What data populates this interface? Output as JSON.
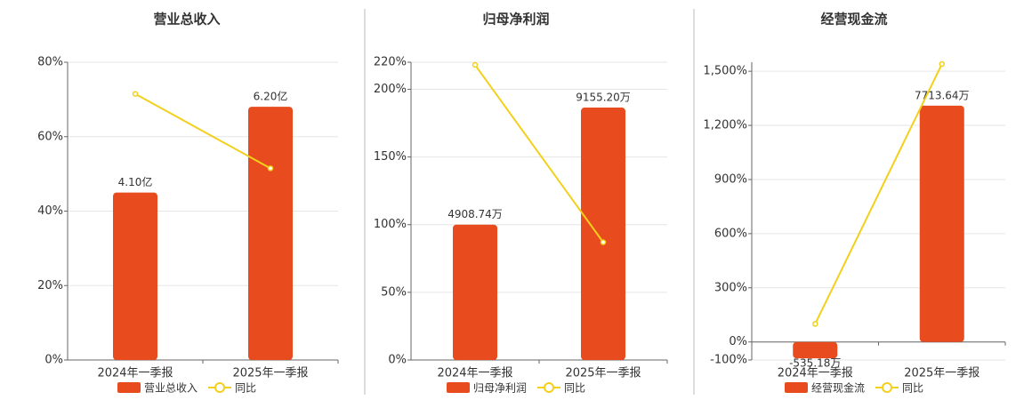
{
  "chart_data": [
    {
      "type": "bar_line",
      "title": "营业总收入",
      "categories": [
        "2024年一季报",
        "2025年一季报"
      ],
      "ylim": [
        0,
        80
      ],
      "yticks": [
        {
          "value": 0,
          "label": "0%"
        },
        {
          "value": 20,
          "label": "20%"
        },
        {
          "value": 40,
          "label": "40%"
        },
        {
          "value": 60,
          "label": "60%"
        },
        {
          "value": 80,
          "label": "80%"
        }
      ],
      "y2lim": [
        0,
        7.29
      ],
      "grid": true,
      "series": [
        {
          "name": "营业总收入",
          "kind": "bar",
          "axis": "y2",
          "color": "#e84c1e",
          "values": [
            4.1,
            6.2
          ],
          "value_labels": [
            "4.10亿",
            "6.20亿"
          ]
        },
        {
          "name": "同比",
          "kind": "line",
          "color": "#f2d01c",
          "values": [
            71.5,
            51.5
          ]
        }
      ]
    },
    {
      "type": "bar_line",
      "title": "归母净利润",
      "categories": [
        "2024年一季报",
        "2025年一季报"
      ],
      "ylim": [
        0,
        220
      ],
      "yticks": [
        {
          "value": 0,
          "label": "0%"
        },
        {
          "value": 50,
          "label": "50%"
        },
        {
          "value": 100,
          "label": "100%"
        },
        {
          "value": 150,
          "label": "150%"
        },
        {
          "value": 200,
          "label": "200%"
        },
        {
          "value": 220,
          "label": "220%"
        }
      ],
      "y2lim": [
        0,
        10800
      ],
      "grid": true,
      "series": [
        {
          "name": "归母净利润",
          "kind": "bar",
          "axis": "y2",
          "color": "#e84c1e",
          "values": [
            4908.74,
            9155.2
          ],
          "value_labels": [
            "4908.74万",
            "9155.20万"
          ]
        },
        {
          "name": "同比",
          "kind": "line",
          "color": "#f2d01c",
          "values": [
            218,
            87
          ]
        }
      ]
    },
    {
      "type": "bar_line",
      "title": "经营现金流",
      "categories": [
        "2024年一季报",
        "2025年一季报"
      ],
      "ylim": [
        -100,
        1550
      ],
      "yticks": [
        {
          "value": -100,
          "label": "-100%"
        },
        {
          "value": 0,
          "label": "0%"
        },
        {
          "value": 300,
          "label": "300%"
        },
        {
          "value": 600,
          "label": "600%"
        },
        {
          "value": 900,
          "label": "900%"
        },
        {
          "value": 1200,
          "label": "1,200%"
        },
        {
          "value": 1500,
          "label": "1,500%"
        }
      ],
      "y2lim": [
        -589,
        9130
      ],
      "grid": true,
      "series": [
        {
          "name": "经营现金流",
          "kind": "bar",
          "axis": "y2",
          "color": "#e84c1e",
          "values": [
            -535.18,
            7713.64
          ],
          "value_labels": [
            "-535.18万",
            "7713.64万"
          ]
        },
        {
          "name": "同比",
          "kind": "line",
          "color": "#f2d01c",
          "values": [
            100,
            1540
          ]
        }
      ]
    }
  ]
}
